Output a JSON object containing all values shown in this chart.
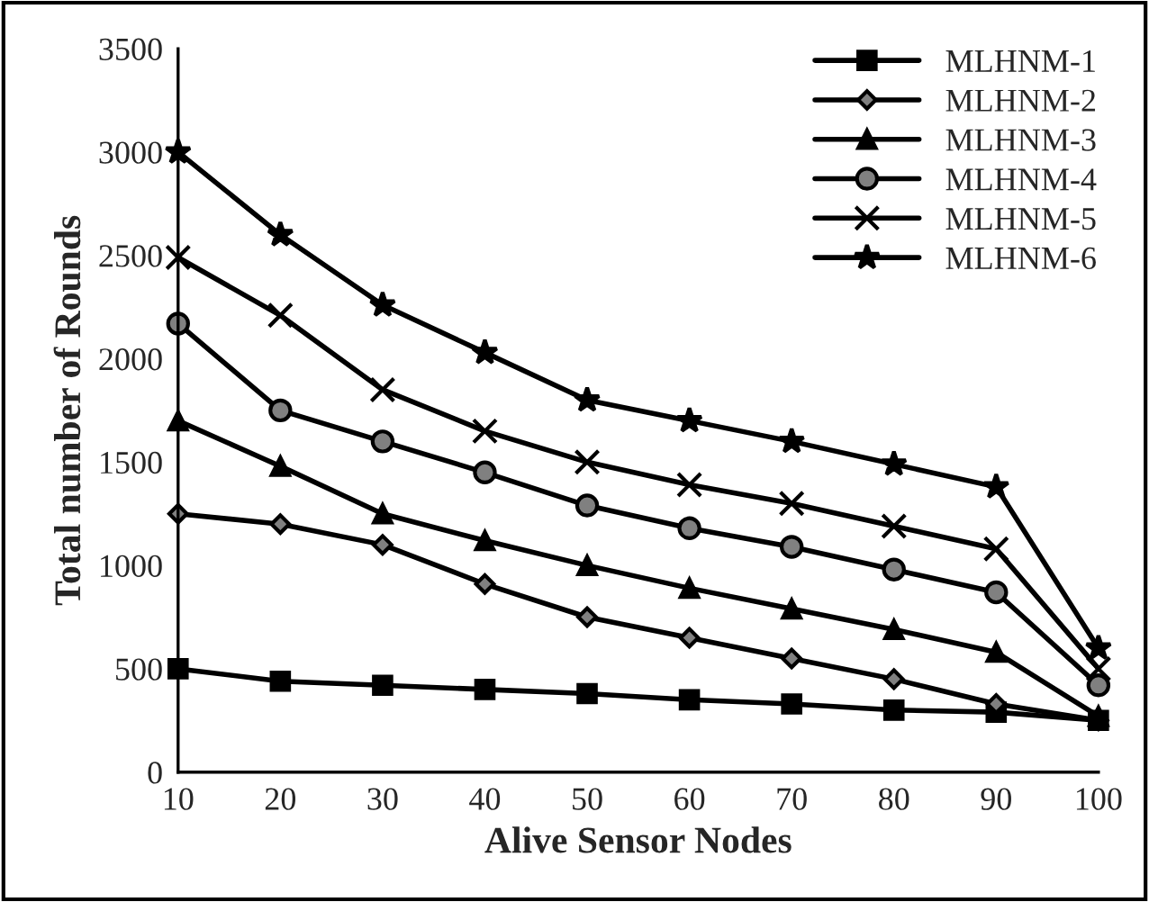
{
  "chart_data": {
    "type": "line",
    "xlabel": "Alive Sensor Nodes",
    "ylabel": "Total number of Rounds",
    "categories": [
      "10",
      "20",
      "30",
      "40",
      "50",
      "60",
      "70",
      "80",
      "90",
      "100"
    ],
    "series": [
      {
        "name": "MLHNM-1",
        "color": "#000000",
        "marker": "square",
        "values": [
          500,
          440,
          420,
          400,
          380,
          350,
          330,
          300,
          290,
          250
        ]
      },
      {
        "name": "MLHNM-2",
        "color": "#000000",
        "marker": "diamond",
        "values": [
          1250,
          1200,
          1100,
          910,
          750,
          650,
          550,
          450,
          330,
          250
        ]
      },
      {
        "name": "MLHNM-3",
        "color": "#000000",
        "marker": "triangle",
        "values": [
          1700,
          1480,
          1250,
          1120,
          1000,
          890,
          790,
          690,
          580,
          270
        ]
      },
      {
        "name": "MLHNM-4",
        "color": "#000000",
        "marker": "circle",
        "values": [
          2170,
          1750,
          1600,
          1450,
          1290,
          1180,
          1090,
          980,
          870,
          420
        ]
      },
      {
        "name": "MLHNM-5",
        "color": "#000000",
        "marker": "cross",
        "values": [
          2490,
          2210,
          1850,
          1650,
          1500,
          1390,
          1300,
          1190,
          1080,
          500
        ]
      },
      {
        "name": "MLHNM-6",
        "color": "#000000",
        "marker": "star",
        "values": [
          3000,
          2600,
          2260,
          2030,
          1800,
          1700,
          1600,
          1490,
          1380,
          600
        ]
      }
    ],
    "ylim": [
      0,
      3500
    ],
    "yticks": [
      0,
      500,
      1000,
      1500,
      2000,
      2500,
      3000,
      3500
    ],
    "grid": false,
    "legend": "top right",
    "line_style": "solid"
  }
}
